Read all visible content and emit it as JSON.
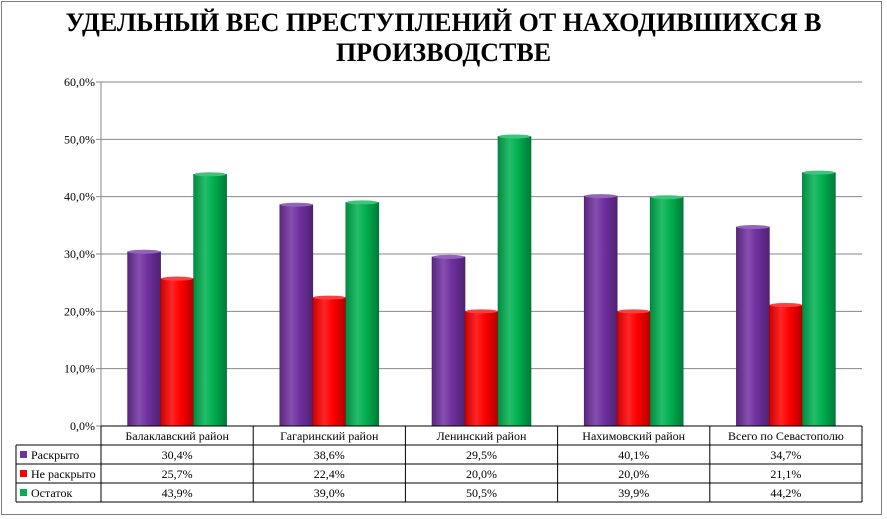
{
  "chart_data": {
    "type": "bar",
    "title": "УДЕЛЬНЫЙ ВЕС ПРЕСТУПЛЕНИЙ ОТ НАХОДИВШИХСЯ В ПРОИЗВОДСТВЕ",
    "categories": [
      "Балаклавский  район",
      "Гагаринский район",
      "Ленинский район",
      "Нахимовский  район",
      "Всего по Севастополю"
    ],
    "ylim": [
      0,
      60
    ],
    "yticks": [
      "0,0%",
      "10,0%",
      "20,0%",
      "30,0%",
      "40,0%",
      "50,0%",
      "60,0%"
    ],
    "grid": true,
    "legend": "data-table",
    "series": [
      {
        "name": "Раскрыто",
        "color": "#7030a0",
        "values": [
          30.4,
          38.6,
          29.5,
          40.1,
          34.7
        ],
        "labels": [
          "30,4%",
          "38,6%",
          "29,5%",
          "40,1%",
          "34,7%"
        ]
      },
      {
        "name": "Не раскрыто",
        "color": "#ff0000",
        "values": [
          25.7,
          22.4,
          20.0,
          20.0,
          21.1
        ],
        "labels": [
          "25,7%",
          "22,4%",
          "20,0%",
          "20,0%",
          "21,1%"
        ]
      },
      {
        "name": "Остаток",
        "color": "#00b050",
        "values": [
          43.9,
          39.0,
          50.5,
          39.9,
          44.2
        ],
        "labels": [
          "43,9%",
          "39,0%",
          "50,5%",
          "39,9%",
          "44,2%"
        ]
      }
    ]
  }
}
